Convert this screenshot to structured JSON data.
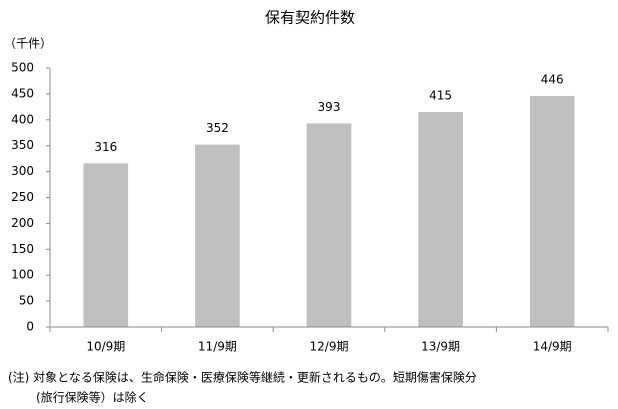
{
  "chart_data": {
    "type": "bar",
    "title": "保有契約件数",
    "y_label": "（千件）",
    "categories": [
      "10/9期",
      "11/9期",
      "12/9期",
      "13/9期",
      "14/9期"
    ],
    "values": [
      316,
      352,
      393,
      415,
      446
    ],
    "color": "#bfbfbf",
    "ylim": [
      0,
      500
    ],
    "yticks": [
      0,
      50,
      100,
      150,
      200,
      250,
      300,
      350,
      400,
      450,
      500
    ],
    "grid": false,
    "notes": [
      "(注) 対象となる保険は、生命保険・医療保険等継続・更新されるもの。短期傷害保険分",
      "(旅行保険等）は除く"
    ]
  }
}
